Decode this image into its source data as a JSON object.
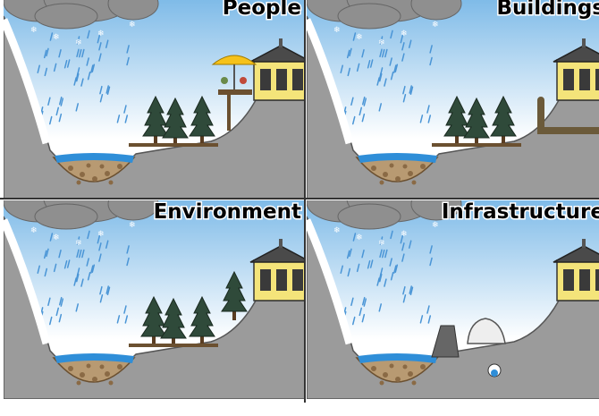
{
  "panels": [
    {
      "label": "People"
    },
    {
      "label": "Buildings"
    },
    {
      "label": "Environment"
    },
    {
      "label": "Infrastructure"
    }
  ]
}
